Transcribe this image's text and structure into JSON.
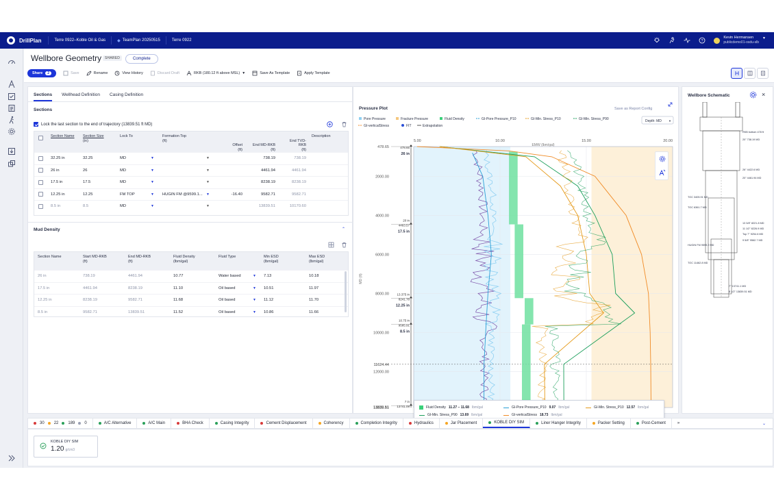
{
  "topbar": {
    "app_name": "DrillPlan",
    "crumbs": [
      "Terre 0922–Koble Oil & Gas",
      "TeamPlan 20250515",
      "Terre 0922"
    ],
    "user_name": "Kevin Hermansen",
    "user_org": "publicdemo01-osdu-slb"
  },
  "header": {
    "title": "Wellbore Geometry",
    "shared_badge": "SHARED",
    "status_button": "Complete",
    "share_label": "Share",
    "share_count": "2",
    "toolbar": {
      "save": "Save",
      "rename": "Rename",
      "view_history": "View History",
      "discard_draft": "Discard Draft",
      "rkb": "RKB (180.12 ft above MSL)",
      "save_as_template": "Save As Template",
      "apply_template": "Apply Template"
    }
  },
  "tabs": [
    "Sections",
    "Wellhead Definition",
    "Casing Definition"
  ],
  "sections": {
    "heading": "Sections",
    "lock_label": "Lock the last section to the end of trajectory (13839.51 ft MD)",
    "columns": {
      "name": "Section Name",
      "size": "Section Size",
      "size_unit": "(in)",
      "lock_to": "Lock To",
      "formation_top": "Formation Top",
      "formation_unit": "(ft)",
      "offset": "Offset",
      "offset_unit": "(ft)",
      "end_md": "End MD-RKB",
      "end_md_unit": "(ft)",
      "end_tvd": "End TVD-RKB",
      "end_tvd_unit": "(ft)",
      "description": "Description"
    },
    "rows": [
      {
        "name": "32.25 in",
        "size": "32.25",
        "lock": "MD",
        "formation": "",
        "offset": "",
        "end_md": "738.19",
        "end_tvd": "738.19"
      },
      {
        "name": "26 in",
        "size": "26",
        "lock": "MD",
        "formation": "",
        "offset": "",
        "end_md": "4461.94",
        "end_tvd": "4461.94"
      },
      {
        "name": "17.5 in",
        "size": "17.5",
        "lock": "MD",
        "formation": "",
        "offset": "",
        "end_md": "8238.19",
        "end_tvd": "8238.19"
      },
      {
        "name": "12.25 in",
        "size": "12.25",
        "lock": "FM TOP",
        "formation": "HUGIN FM @9599.1...",
        "offset": "-16.40",
        "end_md": "9582.71",
        "end_tvd": "9582.71"
      },
      {
        "name": "8.5 in",
        "size": "8.5",
        "lock": "MD",
        "formation": "",
        "offset": "",
        "end_md": "13839.51",
        "end_tvd": "10170.60"
      }
    ]
  },
  "mud": {
    "heading": "Mud Density",
    "columns": {
      "name": "Section Name",
      "start_md": "Start MD-RKB",
      "start_unit": "(ft)",
      "end_md": "End MD-RKB",
      "end_unit": "(ft)",
      "fluid_density": "Fluid Density",
      "fd_unit": "(lbm/gal)",
      "fluid_type": "Fluid Type",
      "min_esd": "Min ESD",
      "min_unit": "(lbm/gal)",
      "max_esd": "Max ESD",
      "max_unit": "(lbm/gal)"
    },
    "rows": [
      {
        "name": "26 in",
        "start": "738.19",
        "end": "4461.94",
        "fd": "10.77",
        "type": "Water based",
        "min": "7.13",
        "max": "10.18"
      },
      {
        "name": "17.5 in",
        "start": "4461.94",
        "end": "8238.19",
        "fd": "11.10",
        "type": "Oil based",
        "min": "10.51",
        "max": "11.97"
      },
      {
        "name": "12.25 in",
        "start": "8238.19",
        "end": "9582.71",
        "fd": "11.68",
        "type": "Oil based",
        "min": "11.12",
        "max": "11.70"
      },
      {
        "name": "8.5 in",
        "start": "9582.71",
        "end": "13839.51",
        "fd": "11.52",
        "type": "Oil based",
        "min": "10.86",
        "max": "11.66"
      }
    ]
  },
  "pressure_plot": {
    "title": "Pressure Plot",
    "save_config": "Save as Report Config",
    "depth_label": "Depth: MD",
    "legend": [
      "Pore Pressure",
      "Fracture Pressure",
      "Fluid Density",
      "GI-Pore Pressure_P10",
      "GI-Min. Stress_P10",
      "GI-Min. Stress_P90",
      "GI-verticalStress",
      "FIT",
      "Extrapolation"
    ],
    "x_axis_label": "EMW (lbm/gal)",
    "y_axis_label": "MD (ft)",
    "colors": {
      "pore": "#8fd0f2",
      "fracture": "#f5a623",
      "fluid": "#3bd07a",
      "p10pore": "#2a9fd6",
      "minp10": "#e59a1a",
      "minp90": "#1a9e5a",
      "vertical": "#f08a24",
      "fit": "#2a4fd8",
      "pore_purple": "#7a4fa8"
    },
    "tooltip": {
      "fluid_label": "Fluid Density",
      "fluid_value": "11.27 – 11.68",
      "fluid_unit": "lbm/gal",
      "gi_pore_label": "GI-Pore Pressure_P10",
      "gi_pore_value": "9.07",
      "gi_pore_unit": "lbm/gal",
      "gi_min10_label": "GI-Min. Stress_P10",
      "gi_min10_value": "12.57",
      "gi_min10_unit": "lbm/gal",
      "gi_min90_label": "GI-Min. Stress_P90",
      "gi_min90_value": "13.69",
      "gi_min90_unit": "lbm/gal",
      "gi_vert_label": "GI-verticalStress",
      "gi_vert_value": "18.73",
      "gi_vert_unit": "lbm/gal"
    },
    "cursor_depth": "11624.44",
    "casing_labels": [
      {
        "top": "478.65",
        "size": "26 in"
      },
      {
        "top": "4463.57",
        "shoe": "20 in",
        "size": "17.5 in"
      },
      {
        "top": "8241.78",
        "shoe": "13.375 in",
        "size": "12.25 in"
      },
      {
        "top": "9585.91",
        "shoe": "10.75 in",
        "size": "8.5 in"
      },
      {
        "top": "13741.09",
        "shoe": "7 in"
      }
    ],
    "bottom_depth": "13839.51"
  },
  "chart_data": {
    "type": "line",
    "title": "Pressure Plot",
    "xlabel": "EMW (lbm/gal)",
    "ylabel": "MD (ft)",
    "xlim": [
      5.0,
      20.0
    ],
    "ylim": [
      478.65,
      13839.51
    ],
    "x_ticks": [
      "5.00",
      "10.00",
      "15.00",
      "20.00"
    ],
    "y_ticks": [
      "478.65",
      "2000.00",
      "4000.00",
      "6000.00",
      "8000.00",
      "10000.00",
      "12000.00",
      "13839.51"
    ],
    "series": [
      {
        "name": "GI-verticalStress",
        "points": [
          [
            5.2,
            478.65
          ],
          [
            10.5,
            700
          ],
          [
            13,
            1000
          ],
          [
            15.5,
            2000
          ],
          [
            17.3,
            4000
          ],
          [
            18.2,
            6000
          ],
          [
            18.6,
            8000
          ],
          [
            18.7,
            10000
          ],
          [
            18.73,
            11624.44
          ],
          [
            18.75,
            13839.51
          ]
        ]
      },
      {
        "name": "GI-Min. Stress_P90",
        "points": [
          [
            6.5,
            478.65
          ],
          [
            12,
            1000
          ],
          [
            14.5,
            2500
          ],
          [
            15.5,
            4000
          ],
          [
            16.5,
            6000
          ],
          [
            16.7,
            8000
          ],
          [
            17.8,
            9000
          ],
          [
            13.69,
            11624.44
          ],
          [
            13.7,
            13839.51
          ]
        ]
      },
      {
        "name": "GI-Min. Stress_P10",
        "points": [
          [
            6.5,
            478.65
          ],
          [
            11.5,
            1000
          ],
          [
            13.5,
            2500
          ],
          [
            14.5,
            4000
          ],
          [
            15,
            6000
          ],
          [
            15.2,
            8000
          ],
          [
            16,
            9000
          ],
          [
            12.57,
            11624.44
          ],
          [
            12.6,
            13839.51
          ]
        ]
      },
      {
        "name": "GI-Pore Pressure_P10",
        "points": [
          [
            8.4,
            800
          ],
          [
            9,
            2000
          ],
          [
            9.3,
            4000
          ],
          [
            9.5,
            6000
          ],
          [
            9.3,
            8000
          ],
          [
            9.2,
            9500
          ],
          [
            9.07,
            11624.44
          ],
          [
            9.07,
            13839.51
          ]
        ]
      },
      {
        "name": "Fluid Density",
        "segments": [
          {
            "from": 738.19,
            "to": 4461.94,
            "value": 10.77
          },
          {
            "from": 4461.94,
            "to": 8238.19,
            "value": 11.1
          },
          {
            "from": 8238.19,
            "to": 9582.71,
            "value": 11.68
          },
          {
            "from": 9582.71,
            "to": 13839.51,
            "value": 11.52
          }
        ]
      }
    ]
  },
  "schematic": {
    "title": "Wellbore Schematic",
    "labels": [
      "RKB bottom 478 ft",
      "20\" 738.19 MD",
      "TOC 3405.91 MD",
      "26\" 4422.6 MD",
      "20\" 4461.94 MD",
      "TOC 6361.7 MD",
      "13 3/8\" 8221.8 MD",
      "11 1/2\" 8226.9 MD",
      "Top 7\" 9254.6 MD",
      "9 5/8\" 9562.7 MD",
      "HUGIN FM 9599.2 MD",
      "TOC 11462.8 MD",
      "7\" 13741.1 MD",
      "8 1/2\" 13839.51 MD"
    ]
  },
  "bottom": {
    "counts": {
      "red": "30",
      "orange": "22",
      "green": "189",
      "gray": "0"
    },
    "tabs": [
      {
        "label": "A/C Alternative",
        "color": "#2aa05a"
      },
      {
        "label": "A/C Main",
        "color": "#2aa05a"
      },
      {
        "label": "BHA Check",
        "color": "#d83a3a"
      },
      {
        "label": "Casing Integrity",
        "color": "#2aa05a"
      },
      {
        "label": "Cement Displacement",
        "color": "#d83a3a"
      },
      {
        "label": "Coherency",
        "color": "#f5a623"
      },
      {
        "label": "Completion Integrity",
        "color": "#2aa05a"
      },
      {
        "label": "Hydraulics",
        "color": "#d83a3a"
      },
      {
        "label": "Jar Placement",
        "color": "#f5a623"
      },
      {
        "label": "KOBLE DIY SIM",
        "color": "#2aa05a"
      },
      {
        "label": "Liner Hanger Integrity",
        "color": "#2aa05a"
      },
      {
        "label": "Packer Setting",
        "color": "#f5a623"
      },
      {
        "label": "Post-Cement",
        "color": "#2aa05a"
      }
    ],
    "card": {
      "title": "KOBLE DIY SIM",
      "value": "1.20",
      "unit": "g/cm3"
    }
  }
}
